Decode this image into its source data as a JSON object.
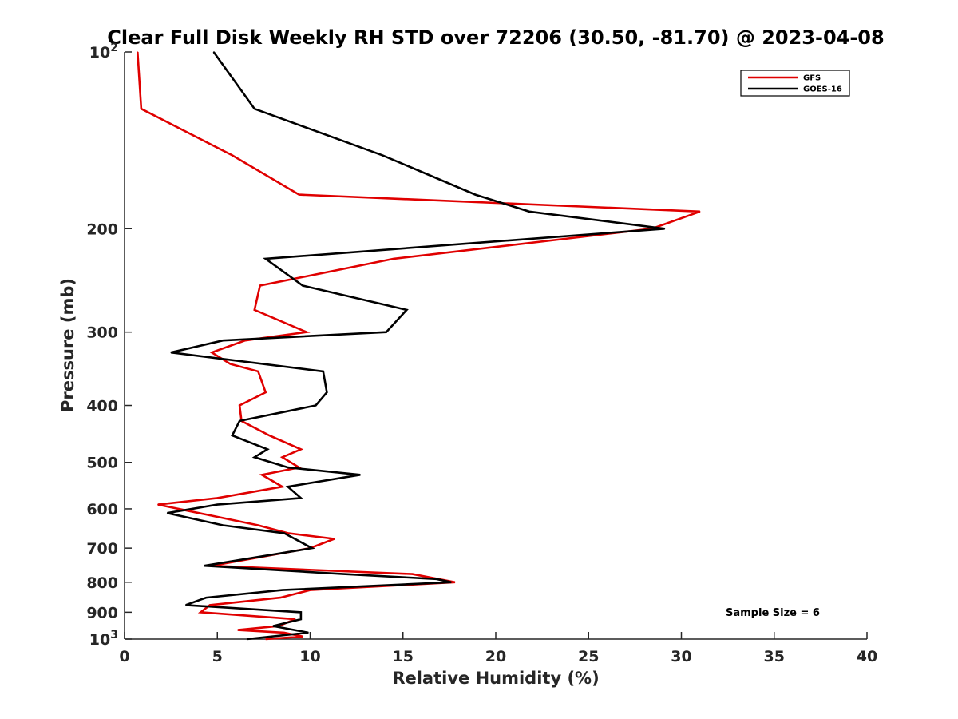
{
  "chart_data": {
    "type": "line",
    "title": "Clear Full Disk Weekly RH STD over 72206 (30.50, -81.70) @ 2023-04-08",
    "xlabel": "Relative Humidity (%)",
    "ylabel": "Pressure (mb)",
    "xlim": [
      0,
      40
    ],
    "ylim": [
      100,
      1000
    ],
    "yscale": "log",
    "y_reversed": true,
    "grid": false,
    "legend_position": "top-right",
    "x_ticks": [
      "0",
      "5",
      "10",
      "15",
      "20",
      "25",
      "30",
      "35",
      "40"
    ],
    "y_ticks": [
      {
        "value": 100,
        "base": "10",
        "exp": "2"
      },
      {
        "value": 200,
        "label": "200"
      },
      {
        "value": 300,
        "label": "300"
      },
      {
        "value": 400,
        "label": "400"
      },
      {
        "value": 500,
        "label": "500"
      },
      {
        "value": 600,
        "label": "600"
      },
      {
        "value": 700,
        "label": "700"
      },
      {
        "value": 800,
        "label": "800"
      },
      {
        "value": 900,
        "label": "900"
      },
      {
        "value": 1000,
        "base": "10",
        "exp": "3"
      }
    ],
    "series": [
      {
        "name": "GFS",
        "color": "#e00000",
        "points": [
          [
            0.7,
            100
          ],
          [
            0.9,
            125
          ],
          [
            5.8,
            150
          ],
          [
            9.4,
            175
          ],
          [
            31.0,
            187
          ],
          [
            28.4,
            200
          ],
          [
            14.5,
            225
          ],
          [
            7.3,
            250
          ],
          [
            7.0,
            275
          ],
          [
            9.8,
            300
          ],
          [
            6.5,
            310
          ],
          [
            4.7,
            325
          ],
          [
            5.7,
            340
          ],
          [
            7.2,
            350
          ],
          [
            7.6,
            380
          ],
          [
            6.2,
            400
          ],
          [
            6.3,
            425
          ],
          [
            7.8,
            450
          ],
          [
            9.5,
            475
          ],
          [
            8.5,
            490
          ],
          [
            9.4,
            510
          ],
          [
            7.4,
            525
          ],
          [
            8.5,
            550
          ],
          [
            5.0,
            575
          ],
          [
            1.8,
            590
          ],
          [
            4.0,
            610
          ],
          [
            7.2,
            640
          ],
          [
            8.8,
            660
          ],
          [
            11.3,
            675
          ],
          [
            10.0,
            700
          ],
          [
            4.7,
            750
          ],
          [
            15.5,
            775
          ],
          [
            17.8,
            800
          ],
          [
            10.0,
            825
          ],
          [
            8.4,
            850
          ],
          [
            4.6,
            875
          ],
          [
            4.1,
            900
          ],
          [
            9.2,
            925
          ],
          [
            8.3,
            950
          ],
          [
            6.1,
            965
          ],
          [
            8.6,
            975
          ],
          [
            9.6,
            990
          ],
          [
            7.6,
            1000
          ]
        ]
      },
      {
        "name": "GOES-16",
        "color": "#000000",
        "points": [
          [
            4.8,
            100
          ],
          [
            7.0,
            125
          ],
          [
            13.9,
            150
          ],
          [
            18.9,
            175
          ],
          [
            21.8,
            187
          ],
          [
            29.1,
            200
          ],
          [
            7.6,
            225
          ],
          [
            9.6,
            250
          ],
          [
            15.2,
            275
          ],
          [
            14.1,
            300
          ],
          [
            5.3,
            310
          ],
          [
            2.5,
            325
          ],
          [
            10.7,
            350
          ],
          [
            10.9,
            380
          ],
          [
            10.3,
            400
          ],
          [
            6.2,
            425
          ],
          [
            5.8,
            450
          ],
          [
            7.7,
            475
          ],
          [
            7.0,
            490
          ],
          [
            8.8,
            510
          ],
          [
            12.7,
            525
          ],
          [
            8.8,
            550
          ],
          [
            9.5,
            575
          ],
          [
            5.0,
            590
          ],
          [
            2.3,
            610
          ],
          [
            5.3,
            640
          ],
          [
            8.6,
            660
          ],
          [
            10.1,
            700
          ],
          [
            4.3,
            750
          ],
          [
            11.8,
            775
          ],
          [
            16.8,
            790
          ],
          [
            17.6,
            800
          ],
          [
            8.5,
            825
          ],
          [
            4.4,
            850
          ],
          [
            3.3,
            875
          ],
          [
            9.5,
            900
          ],
          [
            9.5,
            925
          ],
          [
            8.0,
            950
          ],
          [
            9.9,
            975
          ],
          [
            6.6,
            1000
          ]
        ]
      }
    ],
    "annotations": [
      "Sample Size = 6"
    ]
  }
}
